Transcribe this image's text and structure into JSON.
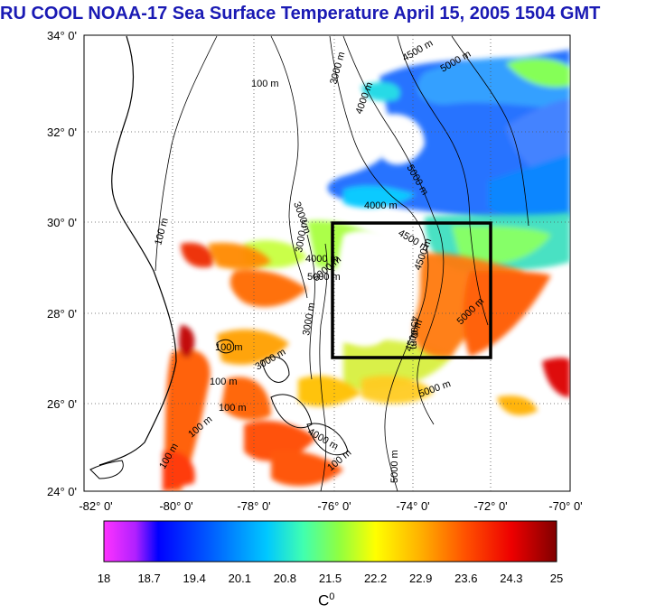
{
  "title": "RU COOL  NOAA-17 Sea Surface Temperature April 15, 2005 1504 GMT",
  "lat_ticks": [
    "34° 0'",
    "32° 0'",
    "30° 0'",
    "28° 0'",
    "26° 0'",
    "24° 0'"
  ],
  "lon_ticks": [
    "-82° 0'",
    "-80° 0'",
    "-78° 0'",
    "-76° 0'",
    "-74° 0'",
    "-72° 0'",
    "-70° 0'"
  ],
  "contour_labels": [
    "100 m",
    "3000 m",
    "4500 m",
    "5000 m",
    "4000 m",
    "3000 m",
    "4000 m",
    "5000 m",
    "100 m",
    "3000 m",
    "4000 m",
    "4500 m",
    "4500 m",
    "5000 m",
    "4500 m",
    "5000 m",
    "100 m",
    "100 m",
    "100 m",
    "3000 m",
    "3000 m",
    "5000 m",
    "100 m",
    "100 m",
    "4000 m",
    "100 m",
    "5000 m",
    "4500 m",
    "5000 m"
  ],
  "colorbar": {
    "ticks": [
      "18",
      "18.7",
      "19.4",
      "20.1",
      "20.8",
      "21.5",
      "22.2",
      "22.9",
      "23.6",
      "24.3",
      "25"
    ],
    "unit": "C",
    "unit_sup": "0",
    "min": 18,
    "max": 25
  },
  "box_region": {
    "lon_min": -76,
    "lon_max": -72,
    "lat_min": 27,
    "lat_max": 30
  },
  "colors": {
    "title": "#1a1ab4",
    "box": "#000000"
  }
}
